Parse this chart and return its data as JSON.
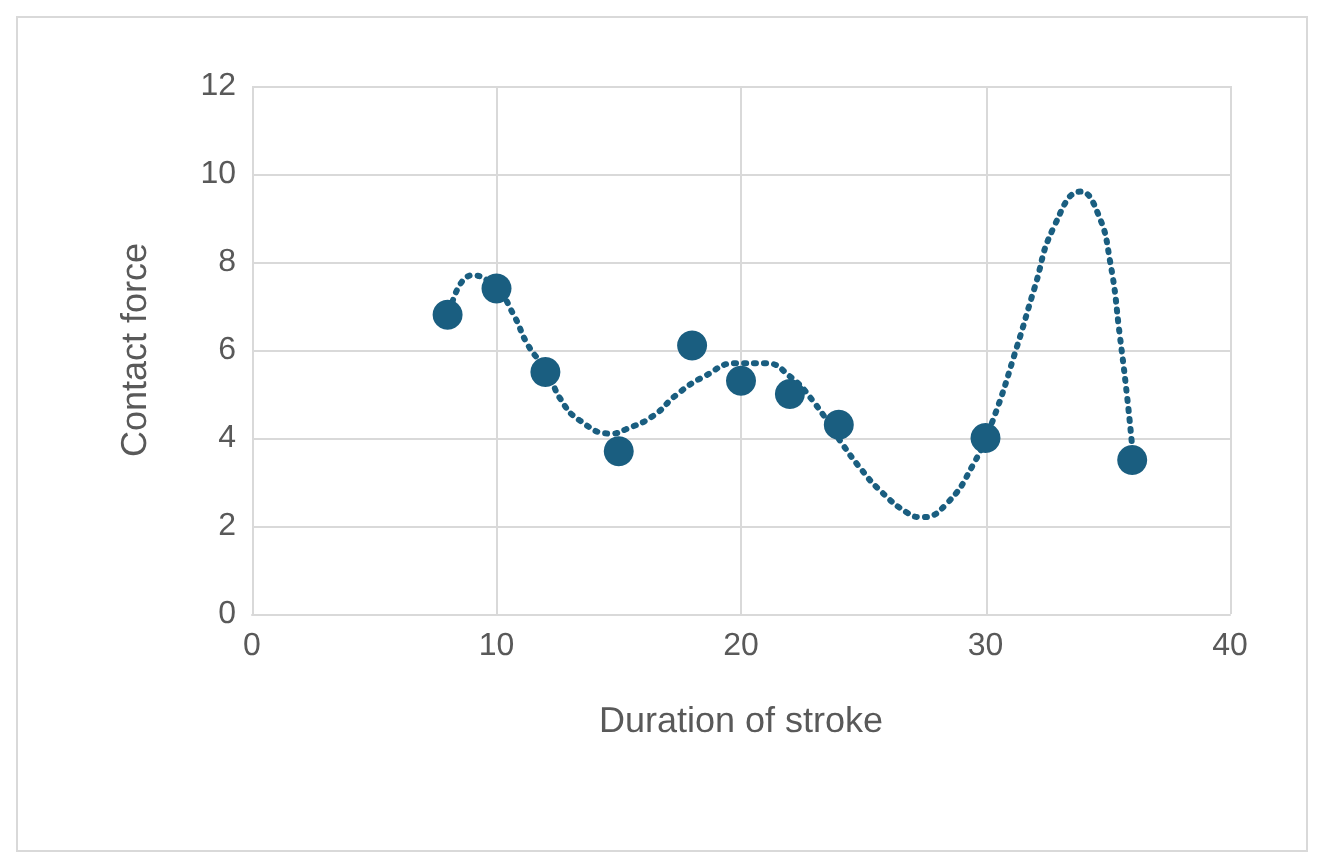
{
  "chart_data": {
    "type": "scatter",
    "xlabel": "Duration of stroke",
    "ylabel": "Contact force",
    "xlim": [
      0,
      40
    ],
    "xticks": [
      0,
      10,
      20,
      30,
      40
    ],
    "ylim": [
      0,
      12
    ],
    "yticks": [
      0,
      2,
      4,
      6,
      8,
      10,
      12
    ],
    "grid": true,
    "series": [
      {
        "color": "#1a5e80",
        "marker": "circle",
        "x": [
          8,
          10,
          12,
          15,
          18,
          20,
          22,
          24,
          30,
          36
        ],
        "values": [
          6.8,
          7.4,
          5.5,
          3.7,
          6.1,
          5.3,
          5.0,
          4.3,
          4.0,
          3.5
        ]
      },
      {
        "type": "line",
        "color": "#1a5e80",
        "line_style": "dotted",
        "marker": "none",
        "x": [
          8.2,
          9,
          10,
          10.7,
          11.3,
          12.1,
          12.6,
          13.4,
          14.7,
          15.3,
          16.4,
          17.4,
          18.5,
          19.8,
          21,
          22,
          23,
          24.1,
          24.9,
          25.7,
          26.8,
          27.4,
          28.4,
          29.5,
          30.3,
          31.3,
          32,
          32.8,
          33.9,
          34.6,
          35.1,
          35.5,
          35.8,
          36
        ],
        "values": [
          7.1,
          7.7,
          7.4,
          6.8,
          6.1,
          5.5,
          4.9,
          4.4,
          4.1,
          4.2,
          4.5,
          5.0,
          5.4,
          5.7,
          5.7,
          5.4,
          4.8,
          3.9,
          3.3,
          2.8,
          2.3,
          2.2,
          2.5,
          3.4,
          4.4,
          6.1,
          7.4,
          8.8,
          9.6,
          9.1,
          8.0,
          6.3,
          4.9,
          3.8
        ]
      }
    ]
  }
}
